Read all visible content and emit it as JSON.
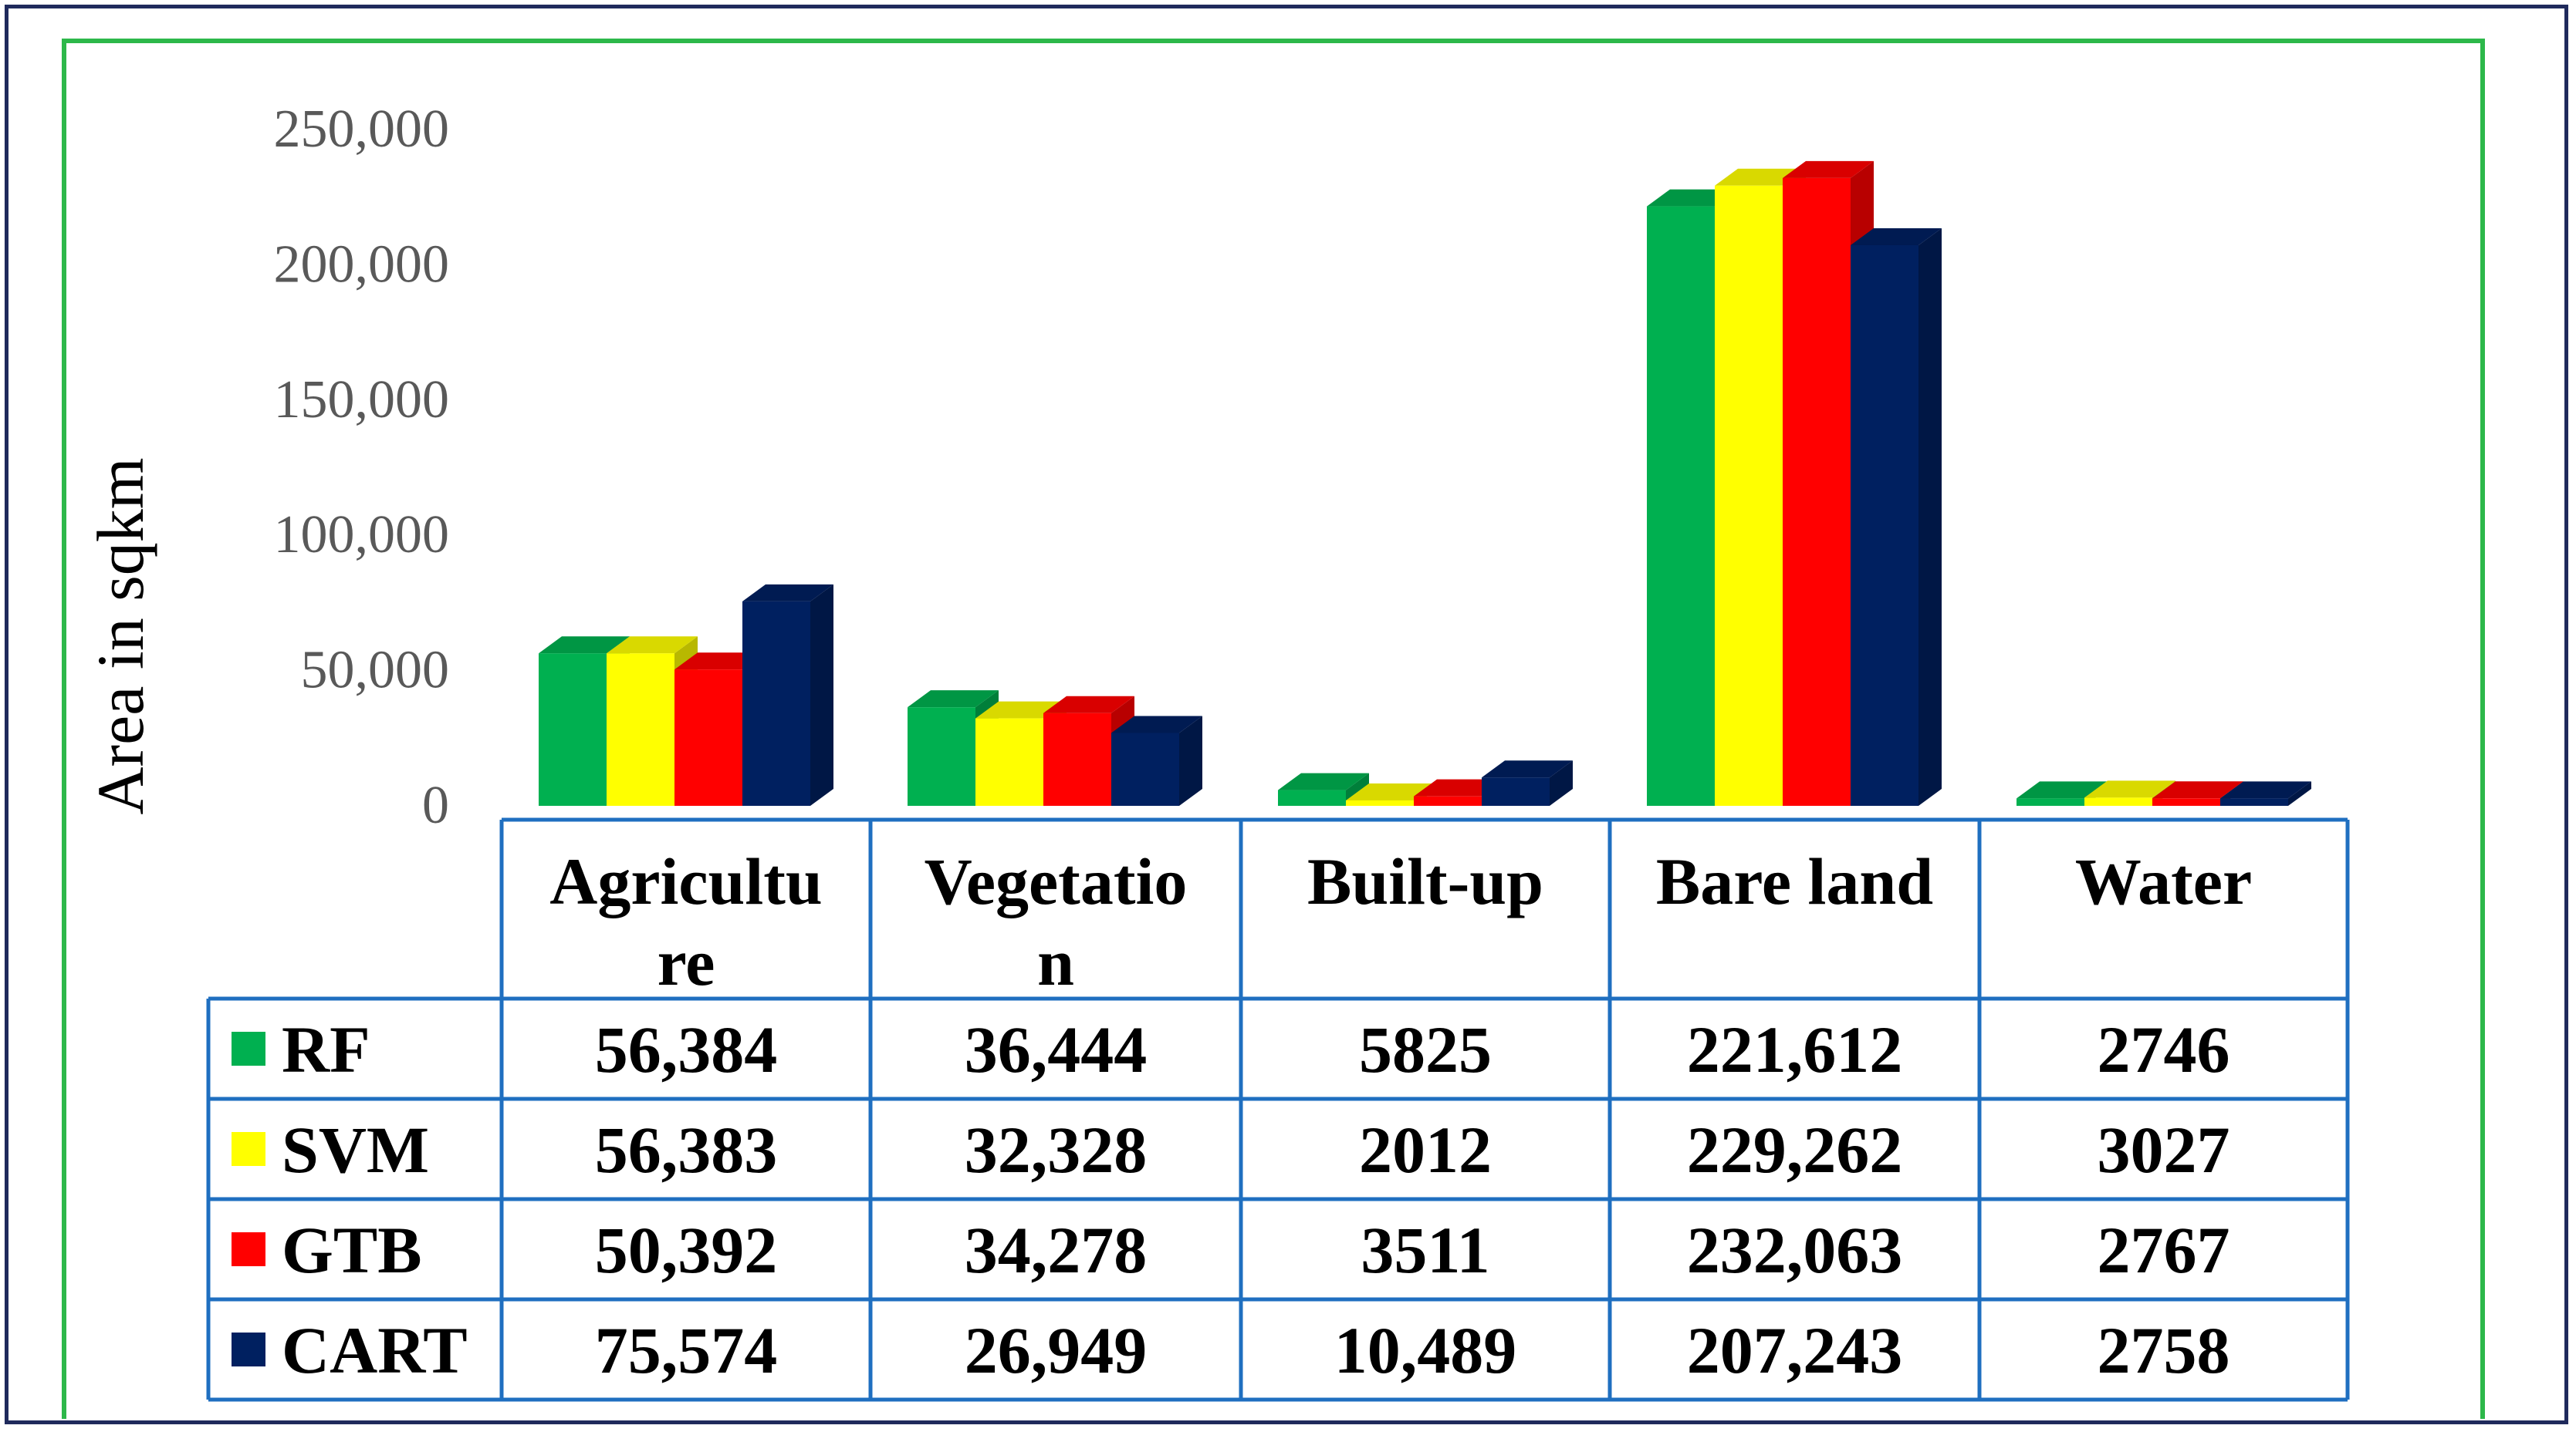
{
  "chart_data": {
    "type": "bar",
    "title": "",
    "xlabel": "",
    "ylabel": "Area in sqkm",
    "ylim": [
      0,
      250000
    ],
    "y_ticks": [
      "0",
      "50,000",
      "100,000",
      "150,000",
      "200,000",
      "250,000"
    ],
    "categories": [
      "Agriculture",
      "Vegetation",
      "Built-up",
      "Bare land",
      "Water"
    ],
    "category_label_lines": [
      [
        "Agricultu",
        "re"
      ],
      [
        "Vegetatio",
        "n"
      ],
      [
        "Built-up"
      ],
      [
        "Bare land"
      ],
      [
        "Water"
      ]
    ],
    "series": [
      {
        "name": "RF",
        "color": "#00b050",
        "values": [
          56384,
          36444,
          5825,
          221612,
          2746
        ],
        "labels": [
          "56,384",
          "36,444",
          "5825",
          "221,612",
          "2746"
        ]
      },
      {
        "name": "SVM",
        "color": "#ffff00",
        "values": [
          56383,
          32328,
          2012,
          229262,
          3027
        ],
        "labels": [
          "56,383",
          "32,328",
          "2012",
          "229,262",
          "3027"
        ]
      },
      {
        "name": "GTB",
        "color": "#ff0000",
        "values": [
          50392,
          34278,
          3511,
          232063,
          2767
        ],
        "labels": [
          "50,392",
          "34,278",
          "3511",
          "232,063",
          "2767"
        ]
      },
      {
        "name": "CART",
        "color": "#002060",
        "values": [
          75574,
          26949,
          10489,
          207243,
          2758
        ],
        "labels": [
          "75,574",
          "26,949",
          "10,489",
          "207,243",
          "2758"
        ]
      }
    ],
    "grid": false,
    "legend": "data-table"
  }
}
